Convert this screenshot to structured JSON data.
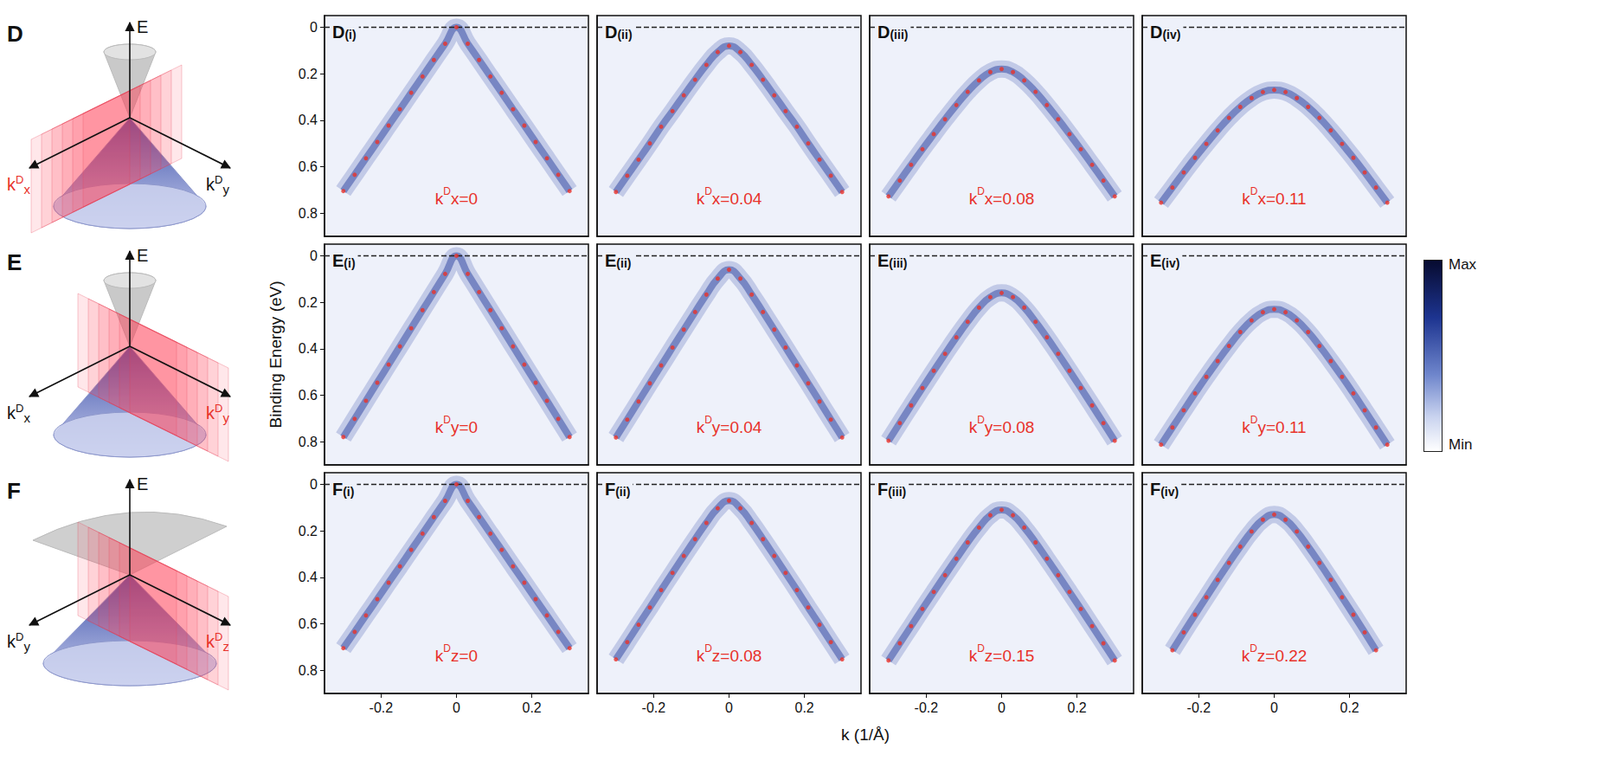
{
  "figure": {
    "ylabel": "Binding Energy (eV)",
    "xlabel": "k (1/Å)",
    "colorbar": {
      "max_label": "Max",
      "min_label": "Min"
    },
    "schematics": [
      {
        "letter": "D",
        "labels": [
          {
            "parts": [
              "k",
              "D",
              "x"
            ],
            "color": "#e8322a"
          },
          {
            "parts": [
              "k",
              "D",
              "y"
            ],
            "color": "#111111"
          },
          {
            "parts": [
              "E"
            ],
            "color": "#111111"
          }
        ]
      },
      {
        "letter": "E",
        "labels": [
          {
            "parts": [
              "k",
              "D",
              "x"
            ],
            "color": "#111111"
          },
          {
            "parts": [
              "k",
              "D",
              "y"
            ],
            "color": "#e8322a"
          },
          {
            "parts": [
              "E"
            ],
            "color": "#111111"
          }
        ]
      },
      {
        "letter": "F",
        "labels": [
          {
            "parts": [
              "k",
              "D",
              "y"
            ],
            "color": "#111111"
          },
          {
            "parts": [
              "k",
              "D",
              "z"
            ],
            "color": "#e8322a"
          },
          {
            "parts": [
              "E"
            ],
            "color": "#111111"
          }
        ]
      }
    ]
  },
  "chart_data": [
    {
      "type": "scatter",
      "title": [
        "D",
        "(i)"
      ],
      "annotation": [
        "k",
        "D",
        "x=0"
      ],
      "color": "#e8322a",
      "marker": "circle",
      "fermi_level": 0,
      "x": [
        -0.3,
        -0.27,
        -0.24,
        -0.21,
        -0.18,
        -0.15,
        -0.12,
        -0.09,
        -0.06,
        -0.03,
        0,
        0.03,
        0.06,
        0.09,
        0.12,
        0.15,
        0.18,
        0.21,
        0.24,
        0.27,
        0.3
      ],
      "values": [
        0.705,
        0.635,
        0.564,
        0.494,
        0.423,
        0.353,
        0.282,
        0.212,
        0.141,
        0.071,
        0,
        0.071,
        0.141,
        0.212,
        0.282,
        0.353,
        0.423,
        0.494,
        0.564,
        0.635,
        0.705
      ],
      "xlim": [
        -0.35,
        0.35
      ],
      "xticks": [
        -0.2,
        0,
        0.2
      ],
      "ylim": [
        -0.05,
        0.9
      ],
      "yticks": [
        0,
        0.2,
        0.4,
        0.6,
        0.8
      ],
      "tick_labels": "y"
    },
    {
      "type": "scatter",
      "title": [
        "D",
        "(ii)"
      ],
      "annotation": [
        "k",
        "D",
        "x=0.04"
      ],
      "color": "#e8322a",
      "marker": "circle",
      "fermi_level": 0,
      "x": [
        -0.3,
        -0.27,
        -0.24,
        -0.21,
        -0.18,
        -0.15,
        -0.12,
        -0.09,
        -0.06,
        -0.03,
        0,
        0.03,
        0.06,
        0.09,
        0.12,
        0.15,
        0.18,
        0.21,
        0.24,
        0.27,
        0.3
      ],
      "values": [
        0.709,
        0.639,
        0.57,
        0.5,
        0.428,
        0.361,
        0.293,
        0.226,
        0.162,
        0.107,
        0.08,
        0.107,
        0.162,
        0.226,
        0.293,
        0.361,
        0.428,
        0.5,
        0.57,
        0.639,
        0.709
      ],
      "xlim": [
        -0.35,
        0.35
      ],
      "xticks": [
        -0.2,
        0,
        0.2
      ],
      "ylim": [
        -0.05,
        0.9
      ],
      "yticks": [
        0,
        0.2,
        0.4,
        0.6,
        0.8
      ],
      "tick_labels": false
    },
    {
      "type": "scatter",
      "title": [
        "D",
        "(iii)"
      ],
      "annotation": [
        "k",
        "D",
        "x=0.08"
      ],
      "color": "#e8322a",
      "marker": "circle",
      "fermi_level": 0,
      "x": [
        -0.3,
        -0.27,
        -0.24,
        -0.21,
        -0.18,
        -0.15,
        -0.12,
        -0.09,
        -0.06,
        -0.03,
        0,
        0.03,
        0.06,
        0.09,
        0.12,
        0.15,
        0.18,
        0.21,
        0.24,
        0.27,
        0.3
      ],
      "values": [
        0.728,
        0.66,
        0.592,
        0.525,
        0.46,
        0.396,
        0.335,
        0.278,
        0.229,
        0.193,
        0.18,
        0.193,
        0.229,
        0.278,
        0.335,
        0.396,
        0.46,
        0.525,
        0.592,
        0.66,
        0.728
      ],
      "xlim": [
        -0.35,
        0.35
      ],
      "xticks": [
        -0.2,
        0,
        0.2
      ],
      "ylim": [
        -0.05,
        0.9
      ],
      "yticks": [
        0,
        0.2,
        0.4,
        0.6,
        0.8
      ],
      "tick_labels": false
    },
    {
      "type": "scatter",
      "title": [
        "D",
        "(iv)"
      ],
      "annotation": [
        "k",
        "D",
        "x=0.11"
      ],
      "color": "#e8322a",
      "marker": "circle",
      "fermi_level": 0,
      "x": [
        -0.3,
        -0.27,
        -0.24,
        -0.21,
        -0.18,
        -0.15,
        -0.12,
        -0.09,
        -0.06,
        -0.03,
        0,
        0.03,
        0.06,
        0.09,
        0.12,
        0.15,
        0.18,
        0.21,
        0.24,
        0.27,
        0.3
      ],
      "values": [
        0.755,
        0.69,
        0.625,
        0.562,
        0.502,
        0.444,
        0.39,
        0.343,
        0.305,
        0.279,
        0.27,
        0.279,
        0.305,
        0.343,
        0.39,
        0.444,
        0.502,
        0.562,
        0.625,
        0.69,
        0.755
      ],
      "xlim": [
        -0.35,
        0.35
      ],
      "xticks": [
        -0.2,
        0,
        0.2
      ],
      "ylim": [
        -0.05,
        0.9
      ],
      "yticks": [
        0,
        0.2,
        0.4,
        0.6,
        0.8
      ],
      "tick_labels": false
    },
    {
      "type": "scatter",
      "title": [
        "E",
        "(i)"
      ],
      "annotation": [
        "k",
        "D",
        "y=0"
      ],
      "color": "#e8322a",
      "marker": "circle",
      "fermi_level": 0,
      "x": [
        -0.3,
        -0.27,
        -0.24,
        -0.21,
        -0.18,
        -0.15,
        -0.12,
        -0.09,
        -0.06,
        -0.03,
        0,
        0.03,
        0.06,
        0.09,
        0.12,
        0.15,
        0.18,
        0.21,
        0.24,
        0.27,
        0.3
      ],
      "values": [
        0.78,
        0.702,
        0.624,
        0.546,
        0.468,
        0.39,
        0.312,
        0.234,
        0.156,
        0.078,
        0,
        0.078,
        0.156,
        0.234,
        0.312,
        0.39,
        0.468,
        0.546,
        0.624,
        0.702,
        0.78
      ],
      "xlim": [
        -0.35,
        0.35
      ],
      "xticks": [
        -0.2,
        0,
        0.2
      ],
      "ylim": [
        -0.05,
        0.9
      ],
      "yticks": [
        0,
        0.2,
        0.4,
        0.6,
        0.8
      ],
      "tick_labels": "y"
    },
    {
      "type": "scatter",
      "title": [
        "E",
        "(ii)"
      ],
      "annotation": [
        "k",
        "D",
        "y=0.04"
      ],
      "color": "#e8322a",
      "marker": "circle",
      "fermi_level": 0,
      "x": [
        -0.3,
        -0.27,
        -0.24,
        -0.21,
        -0.18,
        -0.15,
        -0.12,
        -0.09,
        -0.06,
        -0.03,
        0,
        0.03,
        0.06,
        0.09,
        0.12,
        0.15,
        0.18,
        0.21,
        0.24,
        0.27,
        0.3
      ],
      "values": [
        0.782,
        0.705,
        0.627,
        0.549,
        0.472,
        0.395,
        0.318,
        0.242,
        0.167,
        0.098,
        0.06,
        0.098,
        0.167,
        0.242,
        0.318,
        0.395,
        0.472,
        0.549,
        0.627,
        0.705,
        0.782
      ],
      "xlim": [
        -0.35,
        0.35
      ],
      "xticks": [
        -0.2,
        0,
        0.2
      ],
      "ylim": [
        -0.05,
        0.9
      ],
      "yticks": [
        0,
        0.2,
        0.4,
        0.6,
        0.8
      ],
      "tick_labels": false
    },
    {
      "type": "scatter",
      "title": [
        "E",
        "(iii)"
      ],
      "annotation": [
        "k",
        "D",
        "y=0.08"
      ],
      "color": "#e8322a",
      "marker": "circle",
      "fermi_level": 0,
      "x": [
        -0.3,
        -0.27,
        -0.24,
        -0.21,
        -0.18,
        -0.15,
        -0.12,
        -0.09,
        -0.06,
        -0.03,
        0,
        0.03,
        0.06,
        0.09,
        0.12,
        0.15,
        0.18,
        0.21,
        0.24,
        0.27,
        0.3
      ],
      "values": [
        0.796,
        0.72,
        0.644,
        0.569,
        0.495,
        0.422,
        0.351,
        0.284,
        0.223,
        0.178,
        0.16,
        0.178,
        0.223,
        0.284,
        0.351,
        0.422,
        0.495,
        0.569,
        0.644,
        0.72,
        0.796
      ],
      "xlim": [
        -0.35,
        0.35
      ],
      "xticks": [
        -0.2,
        0,
        0.2
      ],
      "ylim": [
        -0.05,
        0.9
      ],
      "yticks": [
        0,
        0.2,
        0.4,
        0.6,
        0.8
      ],
      "tick_labels": false
    },
    {
      "type": "scatter",
      "title": [
        "E",
        "(iv)"
      ],
      "annotation": [
        "k",
        "D",
        "y=0.11"
      ],
      "color": "#e8322a",
      "marker": "circle",
      "fermi_level": 0,
      "x": [
        -0.3,
        -0.27,
        -0.24,
        -0.21,
        -0.18,
        -0.15,
        -0.12,
        -0.09,
        -0.06,
        -0.03,
        0,
        0.03,
        0.06,
        0.09,
        0.12,
        0.15,
        0.18,
        0.21,
        0.24,
        0.27,
        0.3
      ],
      "values": [
        0.813,
        0.739,
        0.665,
        0.592,
        0.521,
        0.453,
        0.388,
        0.328,
        0.278,
        0.243,
        0.23,
        0.243,
        0.278,
        0.328,
        0.388,
        0.453,
        0.521,
        0.592,
        0.665,
        0.739,
        0.813
      ],
      "xlim": [
        -0.35,
        0.35
      ],
      "xticks": [
        -0.2,
        0,
        0.2
      ],
      "ylim": [
        -0.05,
        0.9
      ],
      "yticks": [
        0,
        0.2,
        0.4,
        0.6,
        0.8
      ],
      "tick_labels": false
    },
    {
      "type": "scatter",
      "title": [
        "F",
        "(i)"
      ],
      "annotation": [
        "k",
        "D",
        "z=0"
      ],
      "color": "#e8322a",
      "marker": "circle",
      "fermi_level": 0,
      "x": [
        -0.3,
        -0.27,
        -0.24,
        -0.21,
        -0.18,
        -0.15,
        -0.12,
        -0.09,
        -0.06,
        -0.03,
        0,
        0.03,
        0.06,
        0.09,
        0.12,
        0.15,
        0.18,
        0.21,
        0.24,
        0.27,
        0.3
      ],
      "values": [
        0.705,
        0.635,
        0.564,
        0.494,
        0.423,
        0.353,
        0.282,
        0.212,
        0.141,
        0.071,
        0,
        0.071,
        0.141,
        0.212,
        0.282,
        0.353,
        0.423,
        0.494,
        0.564,
        0.635,
        0.705
      ],
      "xlim": [
        -0.35,
        0.35
      ],
      "xticks": [
        -0.2,
        0,
        0.2
      ],
      "ylim": [
        -0.05,
        0.9
      ],
      "yticks": [
        0,
        0.2,
        0.4,
        0.6,
        0.8
      ],
      "tick_labels": true
    },
    {
      "type": "scatter",
      "title": [
        "F",
        "(ii)"
      ],
      "annotation": [
        "k",
        "D",
        "z=0.08"
      ],
      "color": "#e8322a",
      "marker": "circle",
      "fermi_level": 0,
      "x": [
        -0.3,
        -0.27,
        -0.24,
        -0.21,
        -0.18,
        -0.15,
        -0.12,
        -0.09,
        -0.06,
        -0.03,
        0,
        0.03,
        0.06,
        0.09,
        0.12,
        0.15,
        0.18,
        0.21,
        0.24,
        0.27,
        0.3
      ],
      "values": [
        0.753,
        0.679,
        0.604,
        0.53,
        0.455,
        0.381,
        0.308,
        0.236,
        0.166,
        0.103,
        0.07,
        0.103,
        0.166,
        0.236,
        0.308,
        0.381,
        0.455,
        0.53,
        0.604,
        0.679,
        0.753
      ],
      "xlim": [
        -0.35,
        0.35
      ],
      "xticks": [
        -0.2,
        0,
        0.2
      ],
      "ylim": [
        -0.05,
        0.9
      ],
      "yticks": [
        0,
        0.2,
        0.4,
        0.6,
        0.8
      ],
      "tick_labels": "x"
    },
    {
      "type": "scatter",
      "title": [
        "F",
        "(iii)"
      ],
      "annotation": [
        "k",
        "D",
        "z=0.15"
      ],
      "color": "#e8322a",
      "marker": "circle",
      "fermi_level": 0,
      "x": [
        -0.3,
        -0.27,
        -0.24,
        -0.21,
        -0.18,
        -0.15,
        -0.12,
        -0.09,
        -0.06,
        -0.03,
        0,
        0.03,
        0.06,
        0.09,
        0.12,
        0.15,
        0.18,
        0.21,
        0.24,
        0.27,
        0.3
      ],
      "values": [
        0.758,
        0.684,
        0.61,
        0.536,
        0.463,
        0.391,
        0.32,
        0.25,
        0.186,
        0.133,
        0.11,
        0.133,
        0.186,
        0.25,
        0.32,
        0.391,
        0.463,
        0.536,
        0.61,
        0.684,
        0.758
      ],
      "xlim": [
        -0.35,
        0.35
      ],
      "xticks": [
        -0.2,
        0,
        0.2
      ],
      "ylim": [
        -0.05,
        0.9
      ],
      "yticks": [
        0,
        0.2,
        0.4,
        0.6,
        0.8
      ],
      "tick_labels": "x"
    },
    {
      "type": "scatter",
      "title": [
        "F",
        "(iv)"
      ],
      "annotation": [
        "k",
        "D",
        "z=0.22"
      ],
      "color": "#e8322a",
      "marker": "circle",
      "fermi_level": 0,
      "x": [
        -0.27,
        -0.24,
        -0.21,
        -0.18,
        -0.15,
        -0.12,
        -0.09,
        -0.06,
        -0.03,
        0,
        0.03,
        0.06,
        0.09,
        0.12,
        0.15,
        0.18,
        0.21,
        0.24,
        0.27
      ],
      "values": [
        0.714,
        0.637,
        0.561,
        0.486,
        0.411,
        0.338,
        0.268,
        0.203,
        0.152,
        0.13,
        0.152,
        0.203,
        0.268,
        0.338,
        0.411,
        0.486,
        0.561,
        0.637,
        0.714
      ],
      "xlim": [
        -0.35,
        0.35
      ],
      "xticks": [
        -0.2,
        0,
        0.2
      ],
      "ylim": [
        -0.05,
        0.9
      ],
      "yticks": [
        0,
        0.2,
        0.4,
        0.6,
        0.8
      ],
      "tick_labels": "x"
    }
  ]
}
